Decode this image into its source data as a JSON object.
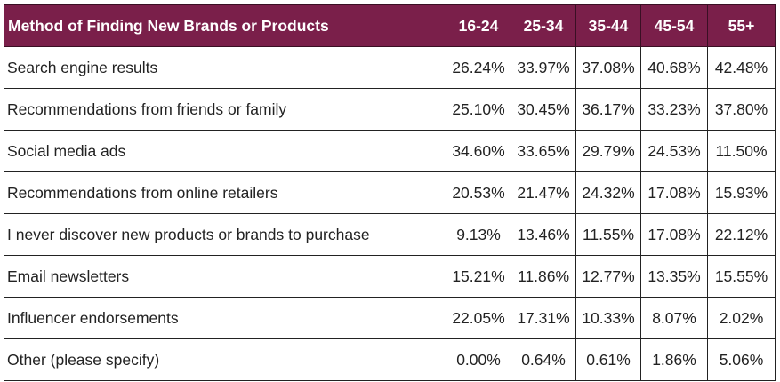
{
  "chart_data": {
    "type": "table",
    "columns": [
      "Method of Finding New Brands or Products",
      "16-24",
      "25-34",
      "35-44",
      "45-54",
      "55+"
    ],
    "rows": [
      {
        "label": "Search engine results",
        "values": [
          "26.24%",
          "33.97%",
          "37.08%",
          "40.68%",
          "42.48%"
        ]
      },
      {
        "label": "Recommendations from friends or family",
        "values": [
          "25.10%",
          "30.45%",
          "36.17%",
          "33.23%",
          "37.80%"
        ]
      },
      {
        "label": "Social media ads",
        "values": [
          "34.60%",
          "33.65%",
          "29.79%",
          "24.53%",
          "11.50%"
        ]
      },
      {
        "label": "Recommendations from online retailers",
        "values": [
          "20.53%",
          "21.47%",
          "24.32%",
          "17.08%",
          "15.93%"
        ]
      },
      {
        "label": "I never discover new products or brands to purchase",
        "values": [
          "9.13%",
          "13.46%",
          "11.55%",
          "17.08%",
          "22.12%"
        ]
      },
      {
        "label": "Email newsletters",
        "values": [
          "15.21%",
          "11.86%",
          "12.77%",
          "13.35%",
          "15.55%"
        ]
      },
      {
        "label": "Influencer endorsements",
        "values": [
          "22.05%",
          "17.31%",
          "10.33%",
          "8.07%",
          "2.02%"
        ]
      },
      {
        "label": "Other (please specify)",
        "values": [
          "0.00%",
          "0.64%",
          "0.61%",
          "1.86%",
          "5.06%"
        ]
      }
    ]
  },
  "colors": {
    "header_background": "#7a1f4a",
    "header_text": "#ffffff",
    "cell_text": "#222222",
    "border": "#222222"
  }
}
